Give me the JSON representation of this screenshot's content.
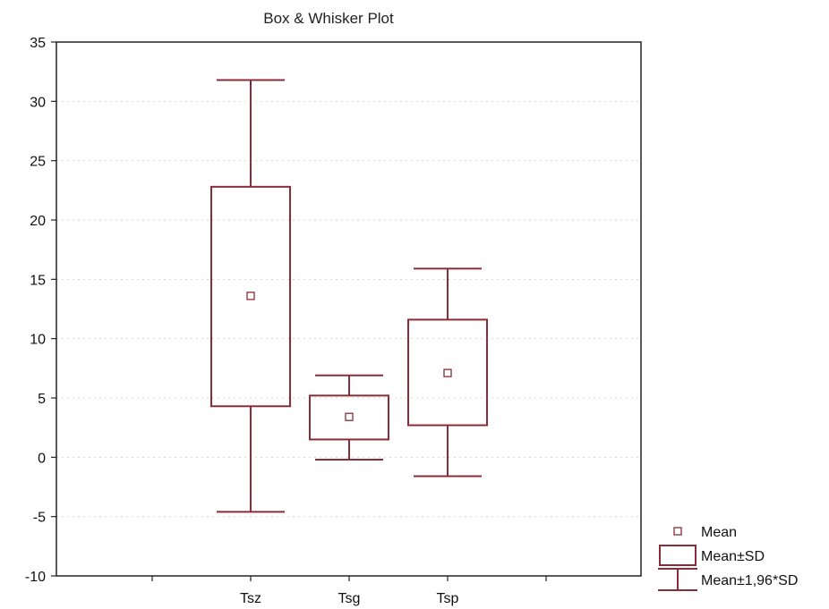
{
  "chart_data": {
    "type": "box",
    "title": "Box & Whisker Plot",
    "xlabel": "",
    "ylabel": "",
    "ylim": [
      -10,
      35
    ],
    "yticks": [
      35,
      30,
      25,
      20,
      15,
      10,
      5,
      0,
      -5,
      -10
    ],
    "grid": true,
    "legend_position": "bottom-right",
    "categories": [
      "Tsz",
      "Tsg",
      "Tsp"
    ],
    "series": [
      {
        "category": "Tsz",
        "mean": 13.6,
        "sd_low": 4.3,
        "sd_high": 22.8,
        "whisker_low": -4.6,
        "whisker_high": 31.8
      },
      {
        "category": "Tsg",
        "mean": 3.4,
        "sd_low": 1.5,
        "sd_high": 5.2,
        "whisker_low": -0.2,
        "whisker_high": 6.9
      },
      {
        "category": "Tsp",
        "mean": 7.1,
        "sd_low": 2.7,
        "sd_high": 11.6,
        "whisker_low": -1.6,
        "whisker_high": 15.9
      }
    ],
    "legend": [
      {
        "symbol": "mean",
        "label": "Mean"
      },
      {
        "symbol": "box",
        "label": "Mean±SD"
      },
      {
        "symbol": "whisker",
        "label": "Mean±1,96*SD"
      }
    ],
    "colors": {
      "marks": "#8b2c38",
      "axis": "#222222",
      "grid": "#d6d6d6"
    }
  }
}
